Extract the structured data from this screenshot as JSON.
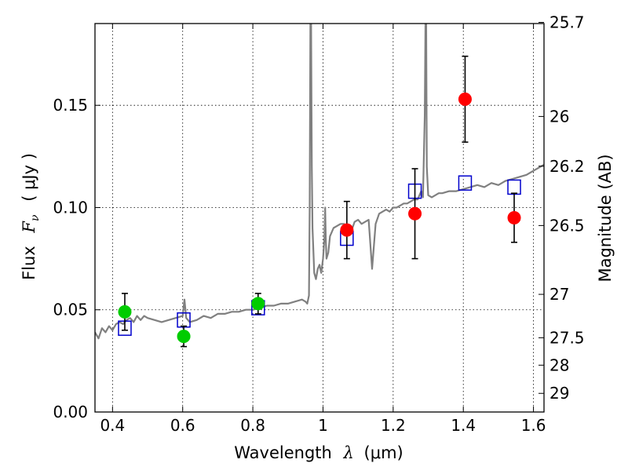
{
  "chart_data": {
    "type": "scatter",
    "xlabel": {
      "text": "Wavelength",
      "symbol": "λ",
      "unit": "(μm)"
    },
    "ylabel": {
      "text": "Flux",
      "symbol_main": "F",
      "symbol_sub": "ν",
      "unit": "( μJy )"
    },
    "ylabel_right": "Magnitude (AB)",
    "xlim": [
      0.35,
      1.63
    ],
    "ylim": [
      0.0,
      0.19
    ],
    "grid": true,
    "x_ticks": [
      0.4,
      0.6,
      0.8,
      1.0,
      1.2,
      1.4,
      1.6
    ],
    "x_tick_labels": [
      "0.4",
      "0.6",
      "0.8",
      "1",
      "1.2",
      "1.4",
      "1.6"
    ],
    "y_ticks": [
      0.0,
      0.05,
      0.1,
      0.15
    ],
    "y_tick_labels": [
      "0.00",
      "0.05",
      "0.10",
      "0.15"
    ],
    "mag_ticks": [
      25.7,
      26,
      26.2,
      26.5,
      27,
      27.5,
      28,
      29
    ],
    "mag_tick_labels": [
      "25.7",
      "26",
      "26.2",
      "26.5",
      "27",
      "27.5",
      "28",
      "29"
    ],
    "series": [
      {
        "kind": "line",
        "color": "#808080",
        "x": [
          0.35,
          0.36,
          0.37,
          0.38,
          0.39,
          0.4,
          0.41,
          0.42,
          0.43,
          0.44,
          0.45,
          0.46,
          0.47,
          0.48,
          0.49,
          0.5,
          0.52,
          0.54,
          0.56,
          0.58,
          0.6,
          0.605,
          0.61,
          0.62,
          0.64,
          0.66,
          0.68,
          0.7,
          0.72,
          0.74,
          0.76,
          0.78,
          0.8,
          0.82,
          0.84,
          0.86,
          0.88,
          0.9,
          0.92,
          0.94,
          0.95,
          0.955,
          0.96,
          0.962,
          0.964,
          0.966,
          0.968,
          0.97,
          0.975,
          0.98,
          0.985,
          0.99,
          0.995,
          1.0,
          1.004,
          1.006,
          1.008,
          1.01,
          1.015,
          1.02,
          1.03,
          1.04,
          1.05,
          1.06,
          1.07,
          1.08,
          1.09,
          1.1,
          1.11,
          1.12,
          1.13,
          1.14,
          1.15,
          1.16,
          1.17,
          1.18,
          1.19,
          1.2,
          1.21,
          1.22,
          1.23,
          1.24,
          1.25,
          1.26,
          1.27,
          1.28,
          1.285,
          1.29,
          1.292,
          1.294,
          1.296,
          1.3,
          1.31,
          1.32,
          1.33,
          1.34,
          1.36,
          1.38,
          1.4,
          1.42,
          1.44,
          1.46,
          1.48,
          1.5,
          1.52,
          1.54,
          1.56,
          1.58,
          1.6,
          1.62,
          1.63
        ],
        "y": [
          0.039,
          0.036,
          0.041,
          0.039,
          0.042,
          0.04,
          0.043,
          0.044,
          0.043,
          0.045,
          0.046,
          0.044,
          0.047,
          0.045,
          0.047,
          0.046,
          0.045,
          0.044,
          0.045,
          0.046,
          0.047,
          0.055,
          0.046,
          0.044,
          0.045,
          0.047,
          0.046,
          0.048,
          0.048,
          0.049,
          0.049,
          0.05,
          0.05,
          0.051,
          0.052,
          0.052,
          0.053,
          0.053,
          0.054,
          0.055,
          0.054,
          0.053,
          0.057,
          0.1,
          0.19,
          0.19,
          0.12,
          0.09,
          0.068,
          0.065,
          0.07,
          0.072,
          0.068,
          0.075,
          0.085,
          0.1,
          0.085,
          0.075,
          0.078,
          0.086,
          0.09,
          0.091,
          0.092,
          0.092,
          0.09,
          0.088,
          0.093,
          0.094,
          0.092,
          0.093,
          0.094,
          0.07,
          0.092,
          0.097,
          0.098,
          0.099,
          0.098,
          0.1,
          0.1,
          0.101,
          0.102,
          0.102,
          0.103,
          0.104,
          0.104,
          0.108,
          0.105,
          0.145,
          0.19,
          0.19,
          0.12,
          0.106,
          0.105,
          0.106,
          0.107,
          0.107,
          0.108,
          0.108,
          0.109,
          0.11,
          0.111,
          0.11,
          0.112,
          0.111,
          0.113,
          0.114,
          0.115,
          0.116,
          0.118,
          0.12,
          0.121
        ]
      },
      {
        "kind": "squares",
        "color": "#0000cc",
        "x": [
          0.435,
          0.603,
          0.815,
          1.068,
          1.262,
          1.405,
          1.545
        ],
        "y": [
          0.041,
          0.045,
          0.051,
          0.085,
          0.108,
          0.112,
          0.11
        ]
      },
      {
        "kind": "points",
        "color": "#00cc00",
        "x": [
          0.435,
          0.603,
          0.815
        ],
        "y": [
          0.049,
          0.037,
          0.053
        ],
        "yerr": [
          0.009,
          0.005,
          0.005
        ]
      },
      {
        "kind": "points",
        "color": "#ff0000",
        "x": [
          1.068,
          1.262,
          1.405,
          1.545
        ],
        "y": [
          0.089,
          0.097,
          0.153,
          0.095
        ],
        "yerr": [
          0.014,
          0.022,
          0.021,
          0.012
        ]
      }
    ]
  }
}
